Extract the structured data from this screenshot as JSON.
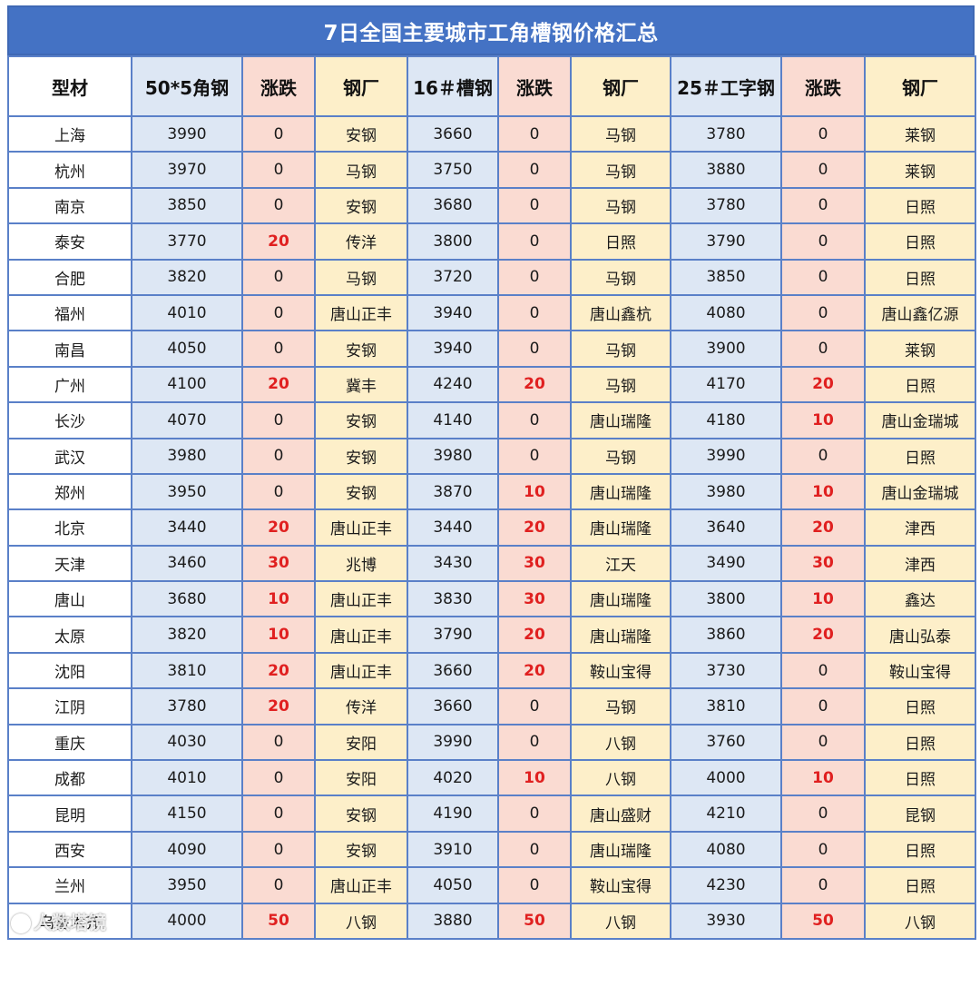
{
  "title": "7日全国主要城市工角槽钢价格汇总",
  "headers": [
    "型材",
    "50*5角钢",
    "涨跌",
    "钢厂",
    "16＃槽钢",
    "涨跌",
    "钢厂",
    "25＃工字钢",
    "涨跌",
    "钢厂"
  ],
  "rows": [
    [
      "上海",
      "3990",
      "0",
      "安钢",
      "3660",
      "0",
      "马钢",
      "3780",
      "0",
      "莱钢"
    ],
    [
      "杭州",
      "3970",
      "0",
      "马钢",
      "3750",
      "0",
      "马钢",
      "3880",
      "0",
      "莱钢"
    ],
    [
      "南京",
      "3850",
      "0",
      "安钢",
      "3680",
      "0",
      "马钢",
      "3780",
      "0",
      "日照"
    ],
    [
      "泰安",
      "3770",
      "20",
      "传洋",
      "3800",
      "0",
      "日照",
      "3790",
      "0",
      "日照"
    ],
    [
      "合肥",
      "3820",
      "0",
      "马钢",
      "3720",
      "0",
      "马钢",
      "3850",
      "0",
      "日照"
    ],
    [
      "福州",
      "4010",
      "0",
      "唐山正丰",
      "3940",
      "0",
      "唐山鑫杭",
      "4080",
      "0",
      "唐山鑫亿源"
    ],
    [
      "南昌",
      "4050",
      "0",
      "安钢",
      "3940",
      "0",
      "马钢",
      "3900",
      "0",
      "莱钢"
    ],
    [
      "广州",
      "4100",
      "20",
      "冀丰",
      "4240",
      "20",
      "马钢",
      "4170",
      "20",
      "日照"
    ],
    [
      "长沙",
      "4070",
      "0",
      "安钢",
      "4140",
      "0",
      "唐山瑞隆",
      "4180",
      "10",
      "唐山金瑞城"
    ],
    [
      "武汉",
      "3980",
      "0",
      "安钢",
      "3980",
      "0",
      "马钢",
      "3990",
      "0",
      "日照"
    ],
    [
      "郑州",
      "3950",
      "0",
      "安钢",
      "3870",
      "10",
      "唐山瑞隆",
      "3980",
      "10",
      "唐山金瑞城"
    ],
    [
      "北京",
      "3440",
      "20",
      "唐山正丰",
      "3440",
      "20",
      "唐山瑞隆",
      "3640",
      "20",
      "津西"
    ],
    [
      "天津",
      "3460",
      "30",
      "兆博",
      "3430",
      "30",
      "江天",
      "3490",
      "30",
      "津西"
    ],
    [
      "唐山",
      "3680",
      "10",
      "唐山正丰",
      "3830",
      "30",
      "唐山瑞隆",
      "3800",
      "10",
      "鑫达"
    ],
    [
      "太原",
      "3820",
      "10",
      "唐山正丰",
      "3790",
      "20",
      "唐山瑞隆",
      "3860",
      "20",
      "唐山弘泰"
    ],
    [
      "沈阳",
      "3810",
      "20",
      "唐山正丰",
      "3660",
      "20",
      "鞍山宝得",
      "3730",
      "0",
      "鞍山宝得"
    ],
    [
      "江阴",
      "3780",
      "20",
      "传洋",
      "3660",
      "0",
      "马钢",
      "3810",
      "0",
      "日照"
    ],
    [
      "重庆",
      "4030",
      "0",
      "安阳",
      "3990",
      "0",
      "八钢",
      "3760",
      "0",
      "日照"
    ],
    [
      "成都",
      "4010",
      "0",
      "安阳",
      "4020",
      "10",
      "八钢",
      "4000",
      "10",
      "日照"
    ],
    [
      "昆明",
      "4150",
      "0",
      "安钢",
      "4190",
      "0",
      "唐山盛财",
      "4210",
      "0",
      "昆钢"
    ],
    [
      "西安",
      "4090",
      "0",
      "安钢",
      "3910",
      "0",
      "唐山瑞隆",
      "4080",
      "0",
      "日照"
    ],
    [
      "兰州",
      "3950",
      "0",
      "唐山正丰",
      "4050",
      "0",
      "鞍山宝得",
      "4230",
      "0",
      "日照"
    ],
    [
      "乌鲁木齐",
      "4000",
      "50",
      "八钢",
      "3880",
      "50",
      "八钢",
      "3930",
      "50",
      "八钢"
    ]
  ],
  "watermark": "人数塔镜",
  "colors": {
    "title_bg": "#4472c4",
    "price_bg": "#dde7f4",
    "change_bg": "#fadbd2",
    "mill_bg": "#fdefc9",
    "border": "#5a80c8",
    "increase_text": "#e02020"
  }
}
